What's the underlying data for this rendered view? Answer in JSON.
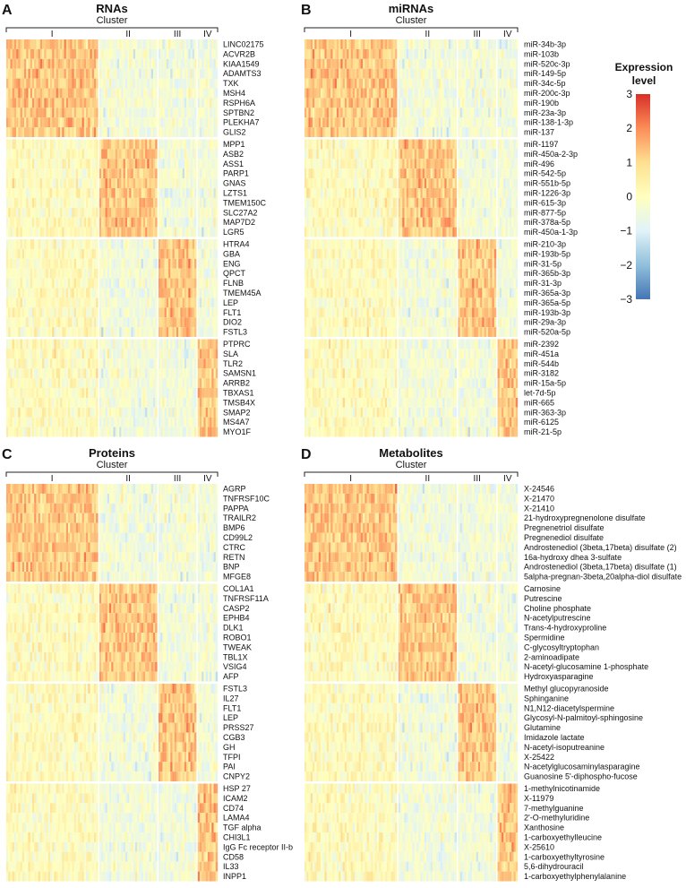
{
  "legend": {
    "title_line1": "Expression",
    "title_line2": "level",
    "ticks": [
      "3",
      "2",
      "1",
      "0",
      "−1",
      "−2",
      "−3"
    ],
    "range": [
      -3,
      3
    ],
    "colors": [
      "#4575b4",
      "#91bfdb",
      "#e0f3f8",
      "#ffffbf",
      "#fee090",
      "#fc8d59",
      "#d73027"
    ]
  },
  "chart_data": [
    {
      "type": "heatmap",
      "letter": "A",
      "title": "RNAs",
      "cluster_label": "Cluster",
      "clusters": [
        "I",
        "II",
        "III",
        "IV"
      ],
      "cluster_fraction": [
        0.44,
        0.28,
        0.18,
        0.1
      ],
      "row_groups_high_in_cluster": [
        "I",
        "II",
        "III",
        "IV"
      ],
      "rows": [
        "LINC02175",
        "ACVR2B",
        "KIAA1549",
        "ADAMTS3",
        "TXK",
        "MSH4",
        "RSPH6A",
        "SPTBN2",
        "PLEKHA7",
        "GLIS2",
        "MPP1",
        "ASB2",
        "ASS1",
        "PARP1",
        "GNAS",
        "LZTS1",
        "TMEM150C",
        "SLC27A2",
        "MAP7D2",
        "LGR5",
        "HTRA4",
        "GBA",
        "ENG",
        "QPCT",
        "FLNB",
        "TMEM45A",
        "LEP",
        "FLT1",
        "DIO2",
        "FSTL3",
        "PTPRC",
        "SLA",
        "TLR2",
        "SAMSN1",
        "ARRB2",
        "TBXAS1",
        "TMSB4X",
        "SMAP2",
        "MS4A7",
        "MYO1F"
      ]
    },
    {
      "type": "heatmap",
      "letter": "B",
      "title": "miRNAs",
      "cluster_label": "Cluster",
      "clusters": [
        "I",
        "II",
        "III",
        "IV"
      ],
      "cluster_fraction": [
        0.44,
        0.28,
        0.18,
        0.1
      ],
      "row_groups_high_in_cluster": [
        "I",
        "II",
        "III",
        "IV"
      ],
      "rows": [
        "miR-34b-3p",
        "miR-103b",
        "miR-520c-3p",
        "miR-149-5p",
        "miR-34c-5p",
        "miR-200c-3p",
        "miR-190b",
        "miR-23a-3p",
        "miR-138-1-3p",
        "miR-137",
        "miR-1197",
        "miR-450a-2-3p",
        "miR-496",
        "miR-542-5p",
        "miR-551b-5p",
        "miR-1226-3p",
        "miR-615-3p",
        "miR-877-5p",
        "miR-378a-5p",
        "miR-450a-1-3p",
        "miR-210-3p",
        "miR-193b-5p",
        "miR-31-5p",
        "miR-365b-3p",
        "miR-31-3p",
        "miR-365a-3p",
        "miR-365a-5p",
        "miR-193b-3p",
        "miR-29a-3p",
        "miR-520a-5p",
        "miR-2392",
        "miR-451a",
        "miR-544b",
        "miR-3182",
        "miR-15a-5p",
        "let-7d-5p",
        "miR-665",
        "miR-363-3p",
        "miR-6125",
        "miR-21-5p"
      ]
    },
    {
      "type": "heatmap",
      "letter": "C",
      "title": "Proteins",
      "cluster_label": "Cluster",
      "clusters": [
        "I",
        "II",
        "III",
        "IV"
      ],
      "cluster_fraction": [
        0.44,
        0.28,
        0.18,
        0.1
      ],
      "row_groups_high_in_cluster": [
        "I",
        "II",
        "III",
        "IV"
      ],
      "rows": [
        "AGRP",
        "TNFRSF10C",
        "PAPPA",
        "TRAILR2",
        "BMP6",
        "CD99L2",
        "CTRC",
        "RETN",
        "BNP",
        "MFGE8",
        "COL1A1",
        "TNFRSF11A",
        "CASP2",
        "EPHB4",
        "DLK1",
        "ROBO1",
        "TWEAK",
        "TBL1X",
        "VSIG4",
        "AFP",
        "FSTL3",
        "IL27",
        "FLT1",
        "LEP",
        "PRSS27",
        "CGB3",
        "GH",
        "TFPI",
        "PAI",
        "CNPY2",
        "HSP 27",
        "ICAM2",
        "CD74",
        "LAMA4",
        "TGF alpha",
        "CHI3L1",
        "IgG Fc receptor II-b",
        "CD58",
        "IL33",
        "INPP1"
      ]
    },
    {
      "type": "heatmap",
      "letter": "D",
      "title": "Metabolites",
      "cluster_label": "Cluster",
      "clusters": [
        "I",
        "II",
        "III",
        "IV"
      ],
      "cluster_fraction": [
        0.44,
        0.28,
        0.18,
        0.1
      ],
      "row_groups_high_in_cluster": [
        "I",
        "II",
        "III",
        "IV"
      ],
      "rows": [
        "X-24546",
        "X-21470",
        "X-21410",
        "21-hydroxypregnenolone disulfate",
        "Pregnenetriol disulfate",
        "Pregnenediol disulfate",
        "Androstenediol (3beta,17beta) disulfate (2)",
        "16a-hydroxy dhea 3-sulfate",
        "Androstenediol (3beta,17beta) disulfate (1)",
        "5alpha-pregnan-3beta,20alpha-diol disulfate",
        "Carnosine",
        "Putrescine",
        "Choline phosphate",
        "N-acetylputrescine",
        "Trans-4-hydroxyproline",
        "Spermidine",
        "C-glycosyltryptophan",
        "2-aminoadipate",
        "N-acetyl-glucosamine 1-phosphate",
        "Hydroxyasparagine",
        "Methyl glucopyranoside",
        "Sphinganine",
        "N1,N12-diacetylspermine",
        "Glycosyl-N-palmitoyl-sphingosine",
        "Glutamine",
        "Imidazole lactate",
        "N-acetyl-isoputreanine",
        "X-25422",
        "N-acetylglucosaminylasparagine",
        "Guanosine 5'-diphospho-fucose",
        "1-methylnicotinamide",
        "X-11979",
        "7-methylguanine",
        "2'-O-methyluridine",
        "Xanthosine",
        "1-carboxyethylleucine",
        "X-25610",
        "1-carboxyethyltyrosine",
        "5,6-dihydrouracil",
        "1-carboxyethylphenylalanine"
      ]
    }
  ]
}
